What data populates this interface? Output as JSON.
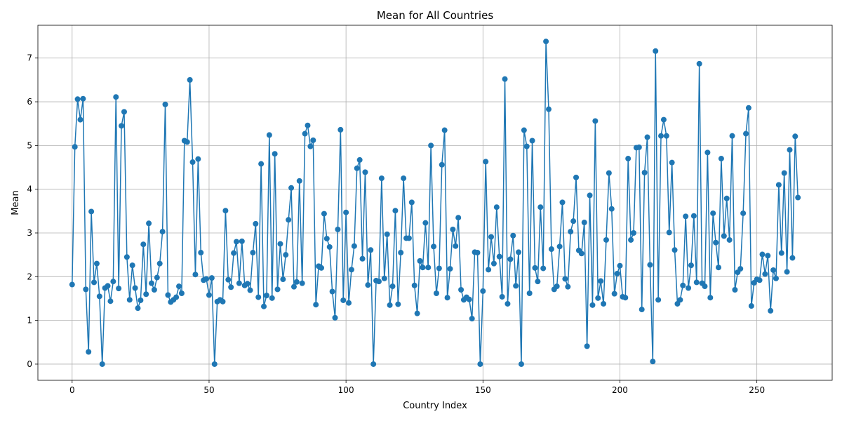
{
  "chart_data": {
    "type": "line",
    "title": "Mean for All Countries",
    "xlabel": "Country Index",
    "ylabel": "Mean",
    "xlim": [
      -12.5,
      277.5
    ],
    "ylim": [
      -0.37,
      7.75
    ],
    "xticks": [
      0,
      50,
      100,
      150,
      200,
      250
    ],
    "yticks": [
      0,
      1,
      2,
      3,
      4,
      5,
      6,
      7
    ],
    "grid": true,
    "marker": "circle",
    "color": "#1f77b4",
    "x_start": 0,
    "x_step": 1,
    "values": [
      1.82,
      4.97,
      6.06,
      5.59,
      6.07,
      1.71,
      0.28,
      3.49,
      1.87,
      2.3,
      1.55,
      0.0,
      1.74,
      1.79,
      1.44,
      1.89,
      6.11,
      1.73,
      5.45,
      5.77,
      2.45,
      1.47,
      2.26,
      1.74,
      1.28,
      1.46,
      2.74,
      1.6,
      3.22,
      1.85,
      1.7,
      1.98,
      2.3,
      3.03,
      5.94,
      1.58,
      1.42,
      1.47,
      1.53,
      1.78,
      1.62,
      5.11,
      5.08,
      6.5,
      4.62,
      2.05,
      4.69,
      2.55,
      1.92,
      1.95,
      1.58,
      1.97,
      0.0,
      1.43,
      1.47,
      1.43,
      3.51,
      1.93,
      1.76,
      2.54,
      2.8,
      1.85,
      2.81,
      1.8,
      1.84,
      1.69,
      2.55,
      3.21,
      1.53,
      4.58,
      1.32,
      1.57,
      5.24,
      1.51,
      4.81,
      1.71,
      2.75,
      1.94,
      2.5,
      3.3,
      4.03,
      1.77,
      1.88,
      4.19,
      1.85,
      5.27,
      5.46,
      4.98,
      5.12,
      1.36,
      2.24,
      2.2,
      3.44,
      2.87,
      2.68,
      1.66,
      1.06,
      3.08,
      5.36,
      1.46,
      3.47,
      1.4,
      2.16,
      2.7,
      4.48,
      4.67,
      2.41,
      4.39,
      1.81,
      2.61,
      0.0,
      1.91,
      1.89,
      4.25,
      1.96,
      2.97,
      1.35,
      1.78,
      3.51,
      1.37,
      2.55,
      4.25,
      2.88,
      2.88,
      3.7,
      1.8,
      1.16,
      2.36,
      2.21,
      3.23,
      2.21,
      5.0,
      2.69,
      1.62,
      2.19,
      4.56,
      5.35,
      1.52,
      2.18,
      3.08,
      2.7,
      3.35,
      1.7,
      1.47,
      1.53,
      1.48,
      1.04,
      2.56,
      2.55,
      0.0,
      1.67,
      4.63,
      2.16,
      2.91,
      2.3,
      3.59,
      2.46,
      1.54,
      6.52,
      1.38,
      2.4,
      2.94,
      1.79,
      2.56,
      0.0,
      5.35,
      4.98,
      1.62,
      5.11,
      2.2,
      1.89,
      3.59,
      2.19,
      7.38,
      5.83,
      2.63,
      1.71,
      1.78,
      2.69,
      3.7,
      1.95,
      1.77,
      3.03,
      3.27,
      4.27,
      2.6,
      2.53,
      3.24,
      0.41,
      3.86,
      1.35,
      5.56,
      1.51,
      1.9,
      1.38,
      2.84,
      4.37,
      3.55,
      1.61,
      2.07,
      2.25,
      1.54,
      1.52,
      4.7,
      2.84,
      3.0,
      4.95,
      4.96,
      1.25,
      4.38,
      5.19,
      2.27,
      0.06,
      7.16,
      1.47,
      5.22,
      5.59,
      5.22,
      3.01,
      4.61,
      2.61,
      1.38,
      1.47,
      1.8,
      3.38,
      1.74,
      2.26,
      3.39,
      1.87,
      6.87,
      1.85,
      1.78,
      4.84,
      1.52,
      3.45,
      2.78,
      2.21,
      4.7,
      2.93,
      3.79,
      2.84,
      5.22,
      1.7,
      2.1,
      2.18,
      3.45,
      5.27,
      5.86,
      1.33,
      1.86,
      1.94,
      1.92,
      2.51,
      2.06,
      2.48,
      1.22,
      2.15,
      1.96,
      4.1,
      2.54,
      4.37,
      2.11,
      4.9,
      2.43,
      5.21,
      3.81
    ]
  }
}
